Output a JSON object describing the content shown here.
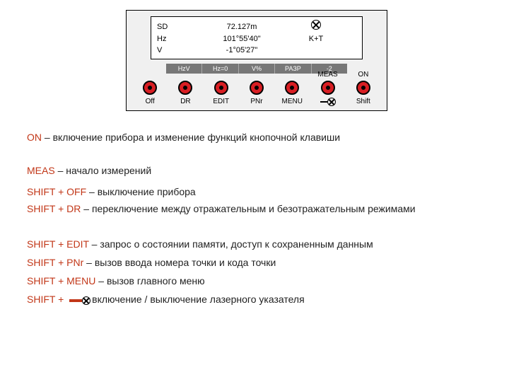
{
  "panel": {
    "display": {
      "rows": [
        {
          "label": "SD",
          "value": "72.127m",
          "extra": ""
        },
        {
          "label": "Hz",
          "value": "101°55'40\"",
          "extra": "K+T"
        },
        {
          "label": "V",
          "value": "-1°05'27\"",
          "extra": ""
        }
      ]
    },
    "softkeys": [
      "HzV",
      "Hz=0",
      "V%",
      "РАЗР",
      "-2"
    ],
    "buttons": [
      {
        "top": "",
        "bottom": "Off"
      },
      {
        "top": "",
        "bottom": "DR"
      },
      {
        "top": "",
        "bottom": "EDIT"
      },
      {
        "top": "",
        "bottom": "PNr"
      },
      {
        "top": "",
        "bottom": "MENU"
      },
      {
        "top": "MEAS",
        "bottom": "laser"
      },
      {
        "top": "ON",
        "bottom": "Shift"
      }
    ]
  },
  "colors": {
    "key": "#c23718",
    "text": "#1f1f1f",
    "button": "#d81e23",
    "softkey_bg": "#777777",
    "panel_bg": "#f0f0f0"
  },
  "legend": [
    {
      "key": "ON",
      "desc": "– включение прибора и изменение функций кнопочной клавиши"
    },
    {
      "key": "MEAS",
      "desc": "– начало измерений"
    },
    {
      "key": "SHIFT + OFF",
      "desc": "– выключение прибора"
    },
    {
      "key": "SHIFT + DR",
      "desc": "– переключение между отражательным и безотражательным режимами"
    },
    {
      "key": "SHIFT + EDIT",
      "desc": "– запрос о состоянии памяти, доступ к сохраненным данным"
    },
    {
      "key": "SHIFT + PNr",
      "desc": "– вызов ввода номера точки и кода точки"
    },
    {
      "key": "SHIFT + MENU",
      "desc": "– вызов главного меню"
    },
    {
      "key": "SHIFT +",
      "icon": "laser",
      "desc": "включение / выключение лазерного указателя"
    }
  ],
  "legend_layout": {
    "tops": [
      185,
      232,
      262,
      286,
      336,
      362,
      388,
      414
    ],
    "font_size": 14
  }
}
